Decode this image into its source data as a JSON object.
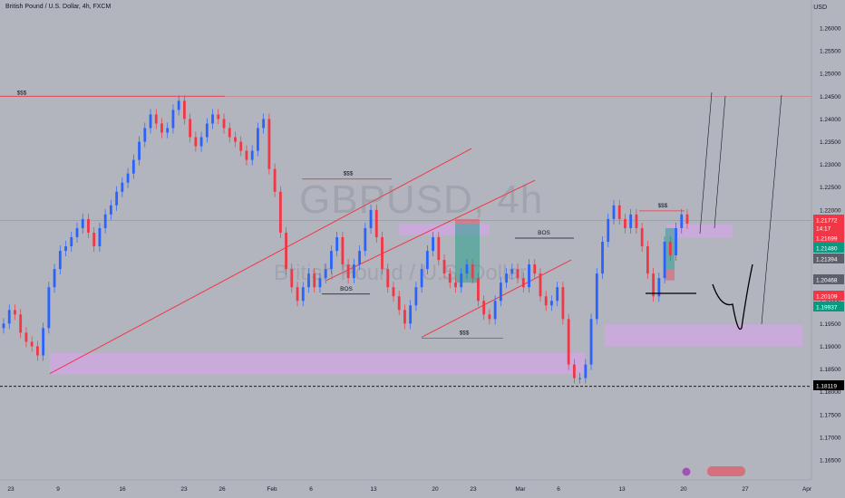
{
  "header": {
    "title": "British Pound / U.S. Dollar, 4h, FXCM",
    "currency": "USD"
  },
  "watermark": {
    "symbol": "GBPUSD, 4h",
    "name": "British Pound / U.S. Dollar"
  },
  "chart_data": {
    "type": "candlestick",
    "symbol": "GBPUSD",
    "timeframe": "4h",
    "colors": {
      "up": "#2962ff",
      "down": "#f23645",
      "zone": "#d1a6e4",
      "line": "#f23645"
    },
    "y_axis": {
      "ylim": [
        1.164,
        1.2655
      ],
      "ticks": [
        "1.26000",
        "1.25500",
        "1.25000",
        "1.24500",
        "1.24000",
        "1.23500",
        "1.23000",
        "1.22500",
        "1.22000",
        "1.21500",
        "1.21000",
        "1.20500",
        "1.20000",
        "1.19500",
        "1.19000",
        "1.18500",
        "1.18000",
        "1.17500",
        "1.17000",
        "1.16500"
      ]
    },
    "x_axis": {
      "ticks": [
        "23",
        "9",
        "16",
        "23",
        "26",
        "Feb",
        "6",
        "13",
        "20",
        "23",
        "Mar",
        "6",
        "13",
        "20",
        "27",
        "Apr"
      ]
    },
    "price_labels": [
      {
        "text": "1.21772",
        "color": "#f23645"
      },
      {
        "text": "14:17",
        "color": "#f23645"
      },
      {
        "text": "1.21699",
        "color": "#f23645"
      },
      {
        "text": "1.21480",
        "color": "#089981"
      },
      {
        "text": "1.21394",
        "color": "#5d606b"
      },
      {
        "text": "1.20468",
        "color": "#5d606b"
      },
      {
        "text": "1.20109",
        "color": "#f23645"
      },
      {
        "text": "1.19937",
        "color": "#089981"
      },
      {
        "text": "1.18119",
        "color": "#000000"
      }
    ],
    "annotations": [
      {
        "text": "$$$",
        "kind": "liquidity"
      },
      {
        "text": "$$$",
        "kind": "liquidity"
      },
      {
        "text": "$$$",
        "kind": "liquidity"
      },
      {
        "text": "$$$",
        "kind": "liquidity"
      },
      {
        "text": "BOS",
        "kind": "break-of-structure"
      },
      {
        "text": "BOS",
        "kind": "break-of-structure"
      }
    ],
    "close_series": [
      1.195,
      1.198,
      1.197,
      1.193,
      1.191,
      1.19,
      1.188,
      1.194,
      1.203,
      1.207,
      1.211,
      1.212,
      1.214,
      1.216,
      1.218,
      1.215,
      1.212,
      1.216,
      1.219,
      1.221,
      1.224,
      1.226,
      1.228,
      1.231,
      1.235,
      1.238,
      1.241,
      1.239,
      1.237,
      1.238,
      1.242,
      1.244,
      1.24,
      1.236,
      1.234,
      1.236,
      1.239,
      1.241,
      1.24,
      1.238,
      1.236,
      1.235,
      1.233,
      1.231,
      1.233,
      1.238,
      1.24,
      1.229,
      1.224,
      1.215,
      1.207,
      1.203,
      1.2,
      1.203,
      1.206,
      1.203,
      1.205,
      1.207,
      1.211,
      1.214,
      1.208,
      1.205,
      1.208,
      1.211,
      1.216,
      1.22,
      1.214,
      1.207,
      1.203,
      1.201,
      1.198,
      1.195,
      1.199,
      1.203,
      1.207,
      1.211,
      1.214,
      1.209,
      1.206,
      1.204,
      1.203,
      1.206,
      1.208,
      1.205,
      1.2,
      1.197,
      1.196,
      1.2,
      1.204,
      1.206,
      1.207,
      1.205,
      1.203,
      1.208,
      1.206,
      1.201,
      1.199,
      1.2,
      1.203,
      1.196,
      1.186,
      1.183,
      1.183,
      1.186,
      1.196,
      1.206,
      1.213,
      1.218,
      1.221,
      1.218,
      1.216,
      1.219,
      1.216,
      1.212,
      1.206,
      1.201,
      1.205,
      1.213,
      1.21,
      1.216,
      1.219,
      1.217
    ]
  }
}
